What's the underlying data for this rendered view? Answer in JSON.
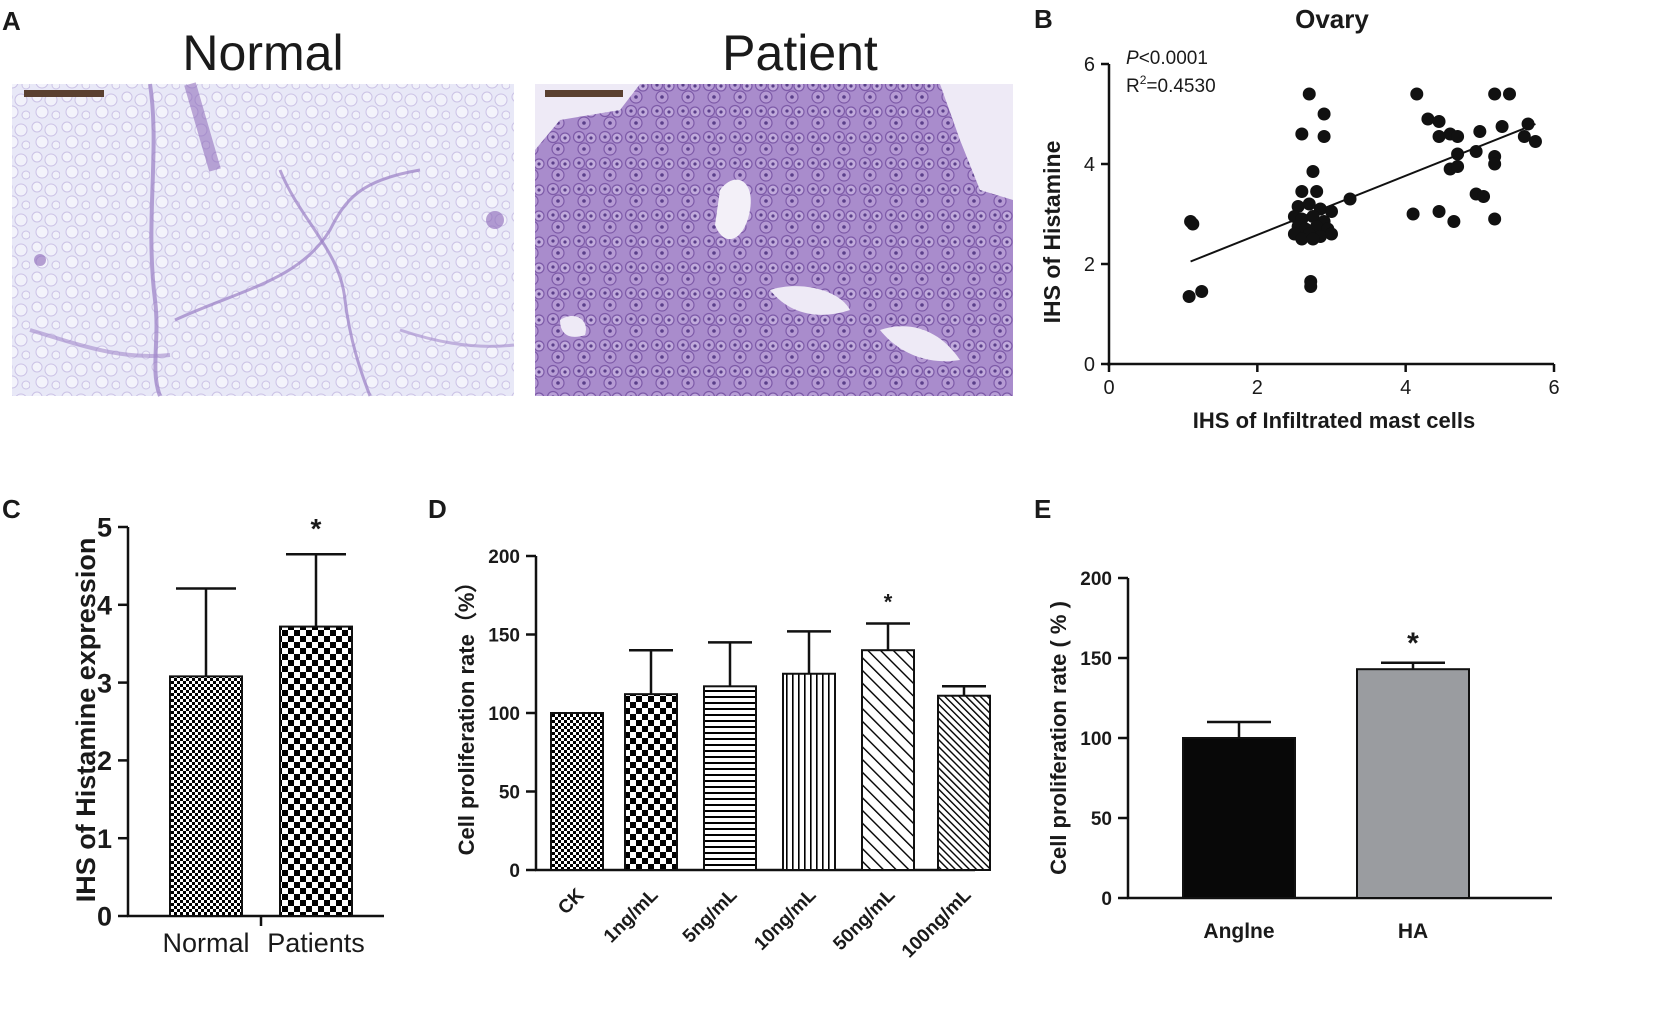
{
  "panel_A": {
    "letter": "A",
    "titles": [
      "Normal",
      "Patient"
    ],
    "colors": {
      "tissue_bg": "#e6e6f6",
      "stain": "#8a66b8"
    }
  },
  "chart_data": [
    {
      "id": "B",
      "type": "scatter",
      "panel_letter": "B",
      "title": "Ovary",
      "xlabel": "IHS of Infiltrated mast cells",
      "ylabel": "IHS of Histamine",
      "xlim": [
        0,
        6
      ],
      "ylim": [
        0,
        6
      ],
      "xticks": [
        "0",
        "2",
        "4",
        "6"
      ],
      "yticks": [
        "0",
        "2",
        "4",
        "6"
      ],
      "annotations": [
        "P<0.0001",
        "R2=0.4530"
      ],
      "points": [
        [
          1.1,
          2.85
        ],
        [
          1.13,
          2.8
        ],
        [
          1.08,
          1.35
        ],
        [
          1.25,
          1.45
        ],
        [
          2.7,
          5.4
        ],
        [
          2.9,
          5.0
        ],
        [
          2.6,
          4.6
        ],
        [
          2.9,
          4.55
        ],
        [
          2.75,
          3.85
        ],
        [
          2.6,
          3.45
        ],
        [
          2.8,
          3.45
        ],
        [
          2.55,
          3.15
        ],
        [
          2.7,
          3.2
        ],
        [
          2.85,
          3.1
        ],
        [
          3.0,
          3.05
        ],
        [
          3.25,
          3.3
        ],
        [
          2.5,
          2.95
        ],
        [
          2.6,
          2.9
        ],
        [
          2.75,
          2.95
        ],
        [
          2.9,
          2.85
        ],
        [
          2.55,
          2.75
        ],
        [
          2.65,
          2.7
        ],
        [
          2.8,
          2.75
        ],
        [
          2.95,
          2.7
        ],
        [
          2.5,
          2.6
        ],
        [
          2.7,
          2.6
        ],
        [
          2.85,
          2.55
        ],
        [
          3.0,
          2.6
        ],
        [
          2.6,
          2.5
        ],
        [
          2.75,
          2.5
        ],
        [
          2.72,
          1.65
        ],
        [
          2.72,
          1.55
        ],
        [
          4.15,
          5.4
        ],
        [
          4.3,
          4.9
        ],
        [
          4.45,
          4.85
        ],
        [
          4.6,
          4.6
        ],
        [
          4.45,
          4.55
        ],
        [
          4.7,
          4.55
        ],
        [
          5.0,
          4.65
        ],
        [
          4.7,
          4.2
        ],
        [
          4.95,
          4.25
        ],
        [
          5.2,
          4.15
        ],
        [
          4.6,
          3.9
        ],
        [
          4.7,
          3.95
        ],
        [
          5.2,
          4.0
        ],
        [
          4.1,
          3.0
        ],
        [
          4.45,
          3.05
        ],
        [
          4.65,
          2.85
        ],
        [
          4.95,
          3.4
        ],
        [
          5.05,
          3.35
        ],
        [
          5.2,
          2.9
        ],
        [
          5.2,
          5.4
        ],
        [
          5.4,
          5.4
        ],
        [
          5.3,
          4.75
        ],
        [
          5.65,
          4.8
        ],
        [
          5.6,
          4.55
        ],
        [
          5.75,
          4.45
        ]
      ],
      "fit_line": {
        "x": [
          1.1,
          5.75
        ],
        "y": [
          2.05,
          4.8
        ]
      }
    },
    {
      "id": "C",
      "type": "bar",
      "panel_letter": "C",
      "ylabel": "IHS of Histamine expression",
      "ylim": [
        0,
        5
      ],
      "yticks": [
        "0",
        "1",
        "2",
        "3",
        "4",
        "5"
      ],
      "categories": [
        "Normal",
        "Patients"
      ],
      "values": [
        3.08,
        3.72
      ],
      "errors": [
        1.13,
        0.93
      ],
      "significance": [
        "",
        "*"
      ]
    },
    {
      "id": "D",
      "type": "bar",
      "panel_letter": "D",
      "ylabel": "Cell proliferation rate（%）",
      "ylim": [
        0,
        200
      ],
      "yticks": [
        "0",
        "50",
        "100",
        "150",
        "200"
      ],
      "categories": [
        "CK",
        "1ng/mL",
        "5ng/mL",
        "10ng/mL",
        "50ng/mL",
        "100ng/mL"
      ],
      "values": [
        100,
        112,
        117,
        125,
        140,
        111
      ],
      "errors": [
        0,
        28,
        28,
        27,
        17,
        6
      ],
      "significance": [
        "",
        "",
        "",
        "",
        "*",
        ""
      ]
    },
    {
      "id": "E",
      "type": "bar",
      "panel_letter": "E",
      "ylabel": "Cell proliferation rate ( % )",
      "ylim": [
        0,
        200
      ],
      "yticks": [
        "0",
        "50",
        "100",
        "150",
        "200"
      ],
      "categories": [
        "Anglne",
        "HA"
      ],
      "values": [
        100,
        143
      ],
      "errors": [
        10,
        4
      ],
      "significance": [
        "",
        "*"
      ],
      "colors": [
        "#080808",
        "#9a9ca0"
      ]
    }
  ]
}
